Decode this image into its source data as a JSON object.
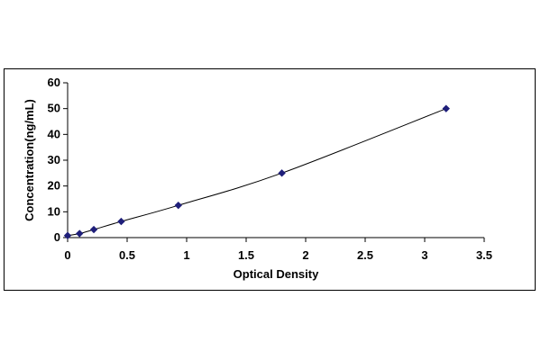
{
  "chart_data": {
    "type": "scatter",
    "title": "",
    "xlabel": "Optical Density",
    "ylabel": "Concentration(ng/mL)",
    "xlim": [
      0,
      3.5
    ],
    "ylim": [
      0,
      60
    ],
    "x_ticks": [
      "0",
      "0.5",
      "1",
      "1.5",
      "2",
      "2.5",
      "3",
      "3.5"
    ],
    "y_ticks": [
      "0",
      "10",
      "20",
      "30",
      "40",
      "50",
      "60"
    ],
    "grid": false,
    "legend": "none",
    "series": [
      {
        "x": [
          0.0,
          0.1,
          0.22,
          0.45,
          0.93,
          1.8,
          3.18
        ],
        "y": [
          0.78,
          1.56,
          3.12,
          6.25,
          12.5,
          25,
          50
        ],
        "marker": "diamond",
        "color": "#1f1f7a",
        "trendline": "smooth"
      }
    ]
  }
}
